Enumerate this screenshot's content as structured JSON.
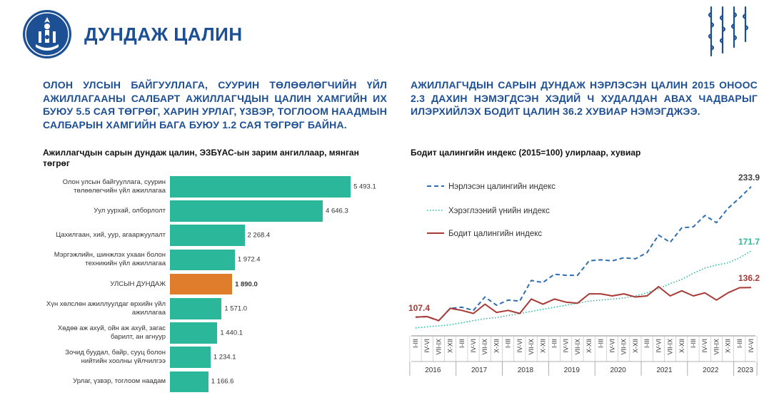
{
  "header": {
    "title": "ДУНДАЖ ЦАЛИН"
  },
  "headlines": {
    "left": "ОЛОН УЛСЫН БАЙГУУЛЛАГА, СУУРИН ТӨЛӨӨЛӨГЧИЙН ҮЙЛ АЖИЛЛАГААНЫ САЛБАРТ АЖИЛЛАГЧДЫН ЦАЛИН ХАМГИЙН ИХ БУЮУ 5.5 САЯ ТӨГРӨГ, ХАРИН УРЛАГ, ҮЗВЭР, ТОГЛООМ НААДМЫН САЛБАРЫН ХАМГИЙН БАГА БУЮУ 1.2 САЯ ТӨГРӨГ БАЙНА.",
    "right": "АЖИЛЛАГЧДЫН САРЫН ДУНДАЖ НЭРЛЭСЭН ЦАЛИН 2015 ОНООС 2.3 ДАХИН НЭМЭГДСЭН ХЭДИЙ Ч ХУДАЛДАН АВАХ ЧАДВАРЫГ ИЛЭРХИЙЛЭХ БОДИТ ЦАЛИН 36.2 ХУВИАР НЭМЭГДЖЭЭ."
  },
  "colors": {
    "title_blue": "#1d4f95",
    "bar_teal": "#2bb89a",
    "bar_highlight": "#e07d2c",
    "nominal_blue": "#2f6fb0",
    "cpi_teal": "#2bb89a",
    "real_red": "#a83a36"
  },
  "chart_data": [
    {
      "type": "bar",
      "orientation": "horizontal",
      "title": "Ажиллагчдын сарын дундаж цалин, ЭЗБҮАС-ын зарим ангиллаар, мянган төгрөг",
      "categories": [
        "Олон улсын байгууллага, суурин төлөөлөгчийн үйл ажиллагаа",
        "Уул уурхай, олборлолт",
        "Цахилгаан, хий, уур, агааржуулалт",
        "Мэргэжлийн, шинжлэх ухаан болон техникийн үйл ажиллагаа",
        "УЛСЫН ДУНДАЖ",
        "Хүн хөлслөн ажиллуулдаг өрхийн үйл ажиллагаа",
        "Хөдөө аж ахуй, ойн аж ахуй, загас барилт, ан агнуур",
        "Зочид буудал, байр, сууц болон нийтийн хоолны үйлчилгээ",
        "Урлаг, үзвэр, тоглоом наадам"
      ],
      "values": [
        5493.1,
        4646.3,
        2268.4,
        1972.4,
        1890.0,
        1571.0,
        1440.1,
        1234.1,
        1166.6
      ],
      "value_labels": [
        "5 493.1",
        "4 646.3",
        "2 268.4",
        "1 972.4",
        "1 890.0",
        "1 571.0",
        "1 440.1",
        "1 234.1",
        "1 166.6"
      ],
      "highlight_index": 4,
      "xlim": [
        0,
        5600
      ]
    },
    {
      "type": "line",
      "title": "Бодит цалингийн индекс (2015=100) улирлаар, хувиар",
      "x_ticks": [
        "I-III",
        "IV-VI",
        "VII-IX",
        "X-XII",
        "I-III",
        "IV-VI",
        "VII-IX",
        "X-XII",
        "I-III",
        "IV-VI",
        "VII-IX",
        "X-XII",
        "I-III",
        "IV-VI",
        "VII-IX",
        "X-XII",
        "I-III",
        "IV-VI",
        "VII-IX",
        "X-XII",
        "I-III",
        "IV-VI",
        "VII-IX",
        "X-XII",
        "I-III",
        "IV-VI",
        "VII-IX",
        "X-XII",
        "I-III",
        "IV-VI"
      ],
      "years": [
        "2016",
        "2017",
        "2018",
        "2019",
        "2020",
        "2021",
        "2022",
        "2023"
      ],
      "year_quarter_counts": [
        4,
        4,
        4,
        4,
        4,
        4,
        4,
        2
      ],
      "ylim": [
        90,
        240
      ],
      "series": [
        {
          "name": "Нэрлэсэн цалингийн индекс",
          "style": "dashed",
          "values": [
            107.4,
            108,
            104,
            116,
            117,
            114,
            127,
            119,
            124,
            123,
            143,
            141,
            149,
            148,
            148,
            162,
            163,
            162,
            165,
            164,
            170,
            187,
            180,
            194,
            195,
            206,
            199,
            213,
            223,
            233.9
          ],
          "end_label": "233.9"
        },
        {
          "name": "Хэрэглээний үнийн индекс",
          "style": "dotted",
          "values": [
            97,
            98,
            99,
            100,
            102,
            104,
            106,
            107,
            109,
            111,
            113,
            115,
            117,
            119,
            121,
            123,
            124,
            125,
            126,
            128,
            131,
            135,
            140,
            144,
            150,
            155,
            158,
            160,
            165,
            171.7
          ],
          "end_label": "171.7"
        },
        {
          "name": "Бодит цалингийн индекс",
          "style": "solid",
          "values": [
            107.4,
            108,
            104,
            116,
            114,
            111,
            120,
            112,
            114,
            111,
            125,
            120,
            125,
            122,
            121,
            130,
            130,
            128,
            130,
            127,
            128,
            137,
            128,
            133,
            128,
            131,
            124,
            131,
            136,
            136.2
          ],
          "start_label": "107.4",
          "end_label": "136.2"
        }
      ]
    }
  ]
}
